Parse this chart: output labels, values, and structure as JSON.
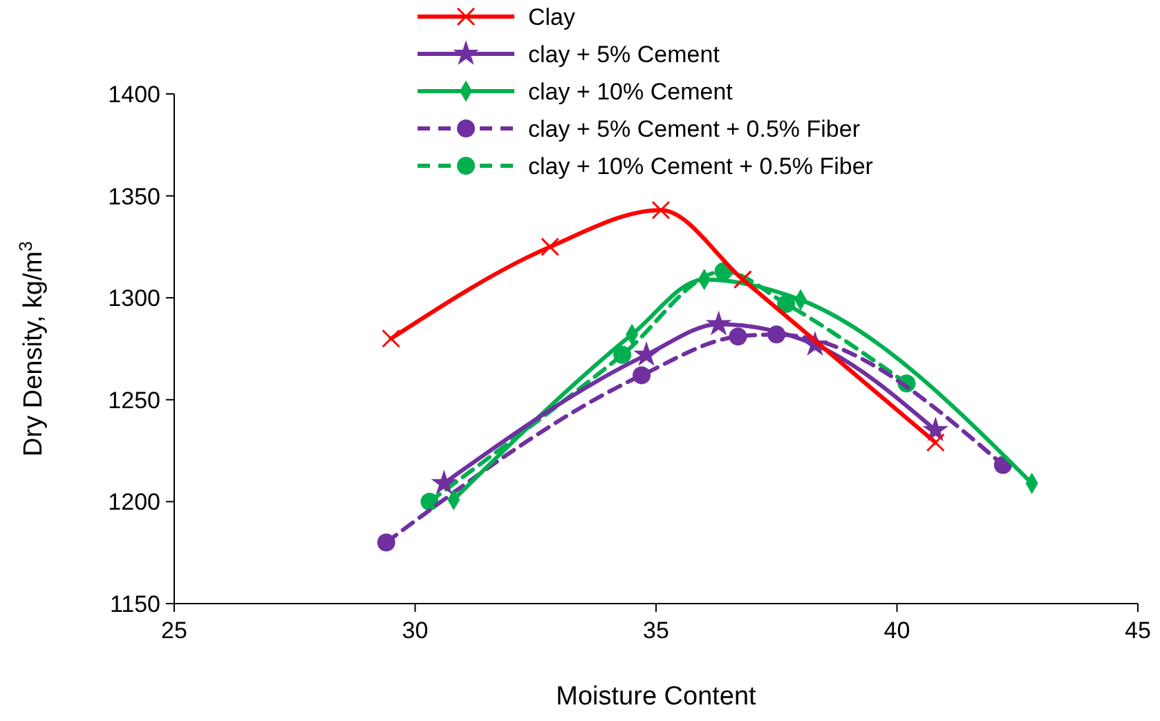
{
  "chart_data": {
    "type": "line",
    "xlabel": "Moisture Content",
    "ylabel": "Dry Density, kg/m$^{3}$",
    "xlim": [
      25,
      45
    ],
    "xticks": [
      25,
      30,
      35,
      40,
      45
    ],
    "ylim": [
      1150,
      1400
    ],
    "yticks": [
      1150,
      1200,
      1250,
      1300,
      1350,
      1400
    ],
    "grid": false,
    "legend": "top",
    "series": [
      {
        "name": "Clay",
        "color": "#ff0000",
        "marker": "cross",
        "line_style": "solid",
        "x": [
          29.5,
          32.8,
          35.1,
          36.8,
          40.8
        ],
        "values": [
          1280,
          1325,
          1343,
          1309,
          1229
        ]
      },
      {
        "name": "clay + 5% Cement",
        "color": "#7030a0",
        "marker": "star",
        "line_style": "solid",
        "x": [
          30.6,
          34.8,
          36.3,
          38.3,
          40.8
        ],
        "values": [
          1209,
          1272,
          1287,
          1277,
          1235
        ]
      },
      {
        "name": "clay + 10% Cement",
        "color": "#00b050",
        "marker": "diamond",
        "line_style": "solid",
        "x": [
          30.8,
          34.5,
          36.0,
          38.0,
          42.8
        ],
        "values": [
          1201,
          1282,
          1309,
          1299,
          1209
        ]
      },
      {
        "name": "clay + 5% Cement + 0.5% Fiber",
        "color": "#7030a0",
        "marker": "circle",
        "line_style": "dashed",
        "x": [
          29.4,
          34.7,
          36.7,
          37.5,
          42.2
        ],
        "values": [
          1180,
          1262,
          1281,
          1282,
          1218
        ]
      },
      {
        "name": "clay + 10% Cement + 0.5% Fiber",
        "color": "#00b050",
        "marker": "circle",
        "line_style": "dashed",
        "x": [
          30.3,
          34.3,
          36.4,
          37.7,
          40.2
        ],
        "values": [
          1200,
          1272,
          1313,
          1297,
          1258
        ]
      }
    ]
  }
}
